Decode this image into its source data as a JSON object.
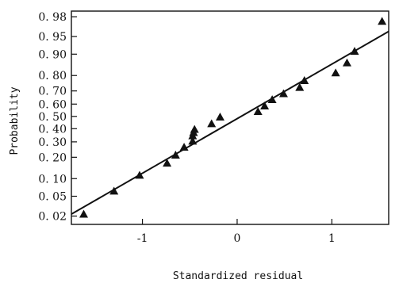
{
  "chart_data": {
    "type": "scatter",
    "title": "",
    "xlabel": "Standardized residual",
    "ylabel": "Probability",
    "x_scale": "linear",
    "y_scale": "normal-probability",
    "xlim": [
      -1.75,
      1.6
    ],
    "ylim": [
      0.013,
      0.985
    ],
    "x_ticks": [
      -1,
      0,
      1
    ],
    "x_tick_labels": [
      "-1",
      "0",
      "1"
    ],
    "y_ticks": [
      0.02,
      0.05,
      0.1,
      0.3,
      0.4,
      0.5,
      0.6,
      0.7,
      0.8,
      0.9,
      0.95,
      0.98
    ],
    "y_tick_labels": [
      "0. 02",
      "0. 05",
      "0. 10",
      "0. 30",
      "0. 40",
      "0. 50",
      "0. 60",
      "0. 70",
      "0. 80",
      "0. 90",
      "0. 95",
      "0. 98"
    ],
    "y_minor_ticks": [
      0.2
    ],
    "y_minor_tick_labels": [
      "0. 20"
    ],
    "marker": "triangle",
    "grid": false,
    "series": [
      {
        "points": [
          {
            "x": -1.62,
            "y": 0.022
          },
          {
            "x": -1.3,
            "y": 0.062
          },
          {
            "x": -1.03,
            "y": 0.113
          },
          {
            "x": -0.74,
            "y": 0.168
          },
          {
            "x": -0.65,
            "y": 0.213
          },
          {
            "x": -0.56,
            "y": 0.263
          },
          {
            "x": -0.47,
            "y": 0.305
          },
          {
            "x": -0.47,
            "y": 0.345
          },
          {
            "x": -0.46,
            "y": 0.37
          },
          {
            "x": -0.45,
            "y": 0.395
          },
          {
            "x": -0.27,
            "y": 0.44
          },
          {
            "x": -0.18,
            "y": 0.495
          },
          {
            "x": 0.22,
            "y": 0.54
          },
          {
            "x": 0.29,
            "y": 0.585
          },
          {
            "x": 0.37,
            "y": 0.635
          },
          {
            "x": 0.49,
            "y": 0.68
          },
          {
            "x": 0.66,
            "y": 0.725
          },
          {
            "x": 0.71,
            "y": 0.77
          },
          {
            "x": 1.04,
            "y": 0.815
          },
          {
            "x": 1.16,
            "y": 0.865
          },
          {
            "x": 1.24,
            "y": 0.91
          },
          {
            "x": 1.53,
            "y": 0.975
          }
        ]
      }
    ],
    "fit_line": {
      "x": [
        -1.75,
        1.6
      ],
      "y": [
        0.022,
        0.96
      ]
    }
  }
}
